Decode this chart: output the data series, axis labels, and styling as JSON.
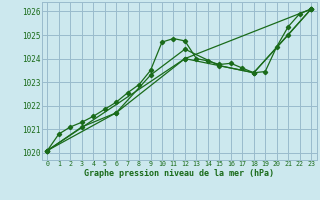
{
  "title": "Graphe pression niveau de la mer (hPa)",
  "bg_color": "#cce8ee",
  "grid_color": "#99bbcc",
  "line_color": "#1a6b1a",
  "ylim": [
    1019.7,
    1026.4
  ],
  "xlim": [
    -0.5,
    23.5
  ],
  "yticks": [
    1020,
    1021,
    1022,
    1023,
    1024,
    1025,
    1026
  ],
  "xticks": [
    0,
    1,
    2,
    3,
    4,
    5,
    6,
    7,
    8,
    9,
    10,
    11,
    12,
    13,
    14,
    15,
    16,
    17,
    18,
    19,
    20,
    21,
    22,
    23
  ],
  "series1_x": [
    0,
    1,
    2,
    3,
    4,
    5,
    6,
    7,
    8,
    9,
    10,
    11,
    12,
    13,
    14,
    15,
    16,
    17,
    18,
    19,
    20,
    21,
    22,
    23
  ],
  "series1_y": [
    1020.1,
    1020.8,
    1021.1,
    1021.3,
    1021.55,
    1021.85,
    1022.15,
    1022.55,
    1022.9,
    1023.5,
    1024.7,
    1024.85,
    1024.75,
    1024.0,
    1023.9,
    1023.75,
    1023.8,
    1023.6,
    1023.4,
    1023.45,
    1024.5,
    1025.35,
    1025.9,
    1026.1
  ],
  "series2_x": [
    0,
    3,
    6,
    9,
    12,
    15,
    18,
    21,
    23
  ],
  "series2_y": [
    1020.1,
    1021.1,
    1021.7,
    1023.3,
    1024.4,
    1023.7,
    1023.4,
    1025.0,
    1026.1
  ],
  "series3_x": [
    0,
    6,
    12,
    18,
    23
  ],
  "series3_y": [
    1020.1,
    1021.7,
    1024.0,
    1023.4,
    1026.1
  ],
  "series4_x": [
    0,
    12,
    23
  ],
  "series4_y": [
    1020.1,
    1024.0,
    1026.1
  ]
}
